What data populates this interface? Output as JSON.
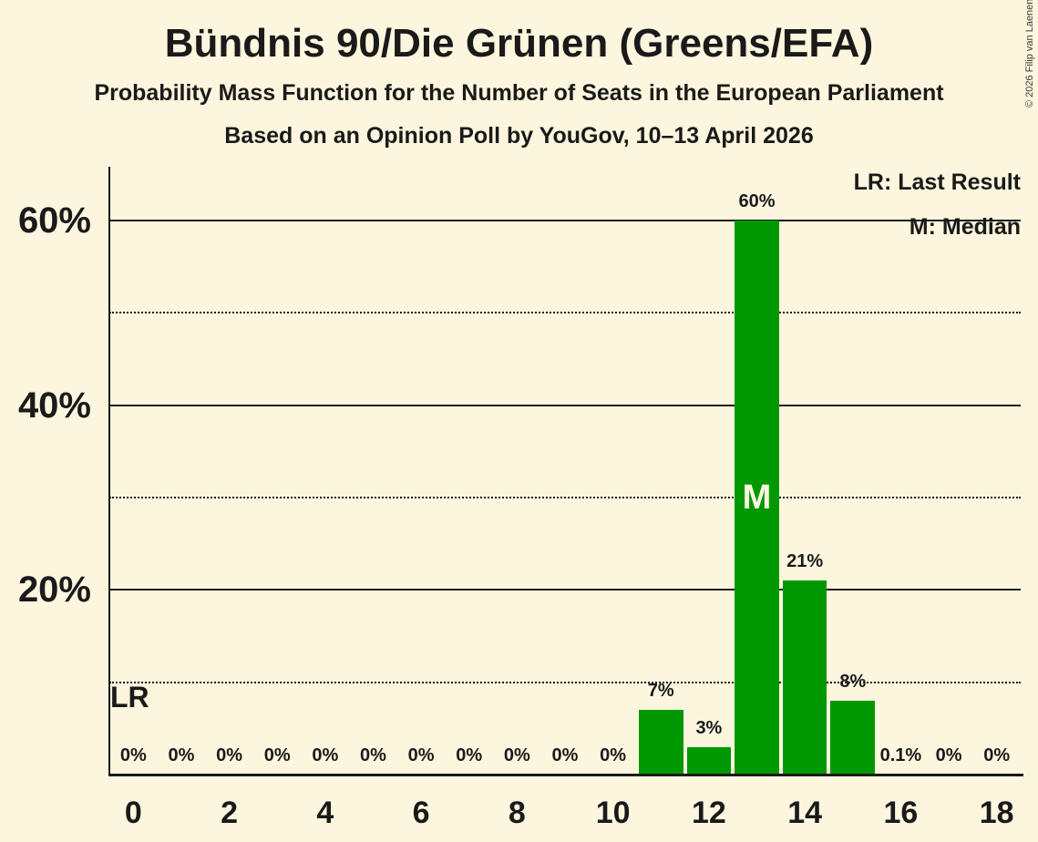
{
  "title": "Bündnis 90/Die Grünen (Greens/EFA)",
  "subtitle": "Probability Mass Function for the Number of Seats in the European Parliament",
  "source_line": "Based on an Opinion Poll by YouGov, 10–13 April 2026",
  "copyright": "© 2026 Filip van Laenen",
  "legend": {
    "lr": "LR: Last Result",
    "m": "M: Median"
  },
  "markers": {
    "last_result": "LR",
    "median": "M"
  },
  "colors": {
    "background": "#FDF6DE",
    "bar": "#009800",
    "text": "#1A1A1A",
    "median_letter": "#FDF6DE"
  },
  "chart_data": {
    "type": "bar",
    "title": "Bündnis 90/Die Grünen (Greens/EFA) — Probability Mass Function for the Number of Seats in the European Parliament",
    "xlabel": "",
    "ylabel": "",
    "x": [
      0,
      1,
      2,
      3,
      4,
      5,
      6,
      7,
      8,
      9,
      10,
      11,
      12,
      13,
      14,
      15,
      16,
      17,
      18
    ],
    "values": [
      0,
      0,
      0,
      0,
      0,
      0,
      0,
      0,
      0,
      0,
      0,
      7,
      3,
      60,
      21,
      8,
      0.1,
      0,
      0
    ],
    "bar_labels": [
      "0%",
      "0%",
      "0%",
      "0%",
      "0%",
      "0%",
      "0%",
      "0%",
      "0%",
      "0%",
      "0%",
      "7%",
      "3%",
      "60%",
      "21%",
      "8%",
      "0.1%",
      "0%",
      "0%"
    ],
    "xticks": [
      0,
      2,
      4,
      6,
      8,
      10,
      12,
      14,
      16,
      18
    ],
    "ytick_pcts": [
      20,
      40,
      60
    ],
    "solid_gridlines_pct": [
      20,
      40,
      60
    ],
    "dotted_gridlines_pct": [
      10,
      30,
      50
    ],
    "ylim_pct": [
      0,
      65.8
    ],
    "median_seat": 13,
    "last_result_seat": 0,
    "legend_position": "top-right",
    "grid": "horizontal-only"
  }
}
